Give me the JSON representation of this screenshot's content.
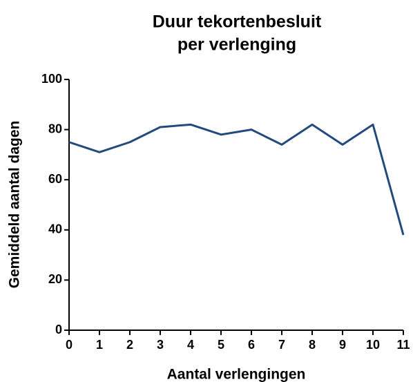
{
  "chart_data": {
    "type": "line",
    "title": [
      "Duur tekortenbesluit",
      "per verlenging"
    ],
    "xlabel": "Aantal verlengingen",
    "ylabel": "Gemiddeld aantal dagen",
    "x": [
      0,
      1,
      2,
      3,
      4,
      5,
      6,
      7,
      8,
      9,
      10,
      11
    ],
    "series": [
      {
        "name": "Gemiddeld aantal dagen",
        "color": "#234a7c",
        "values": [
          75,
          71,
          75,
          81,
          82,
          78,
          80,
          74,
          82,
          74,
          82,
          38
        ]
      }
    ],
    "xlim": [
      0,
      11
    ],
    "xticks": [
      0,
      1,
      2,
      3,
      4,
      5,
      6,
      7,
      8,
      9,
      10,
      11
    ],
    "ylim": [
      0,
      100
    ],
    "yticks": [
      0,
      20,
      40,
      60,
      80,
      100
    ],
    "grid": false,
    "legend": false
  }
}
